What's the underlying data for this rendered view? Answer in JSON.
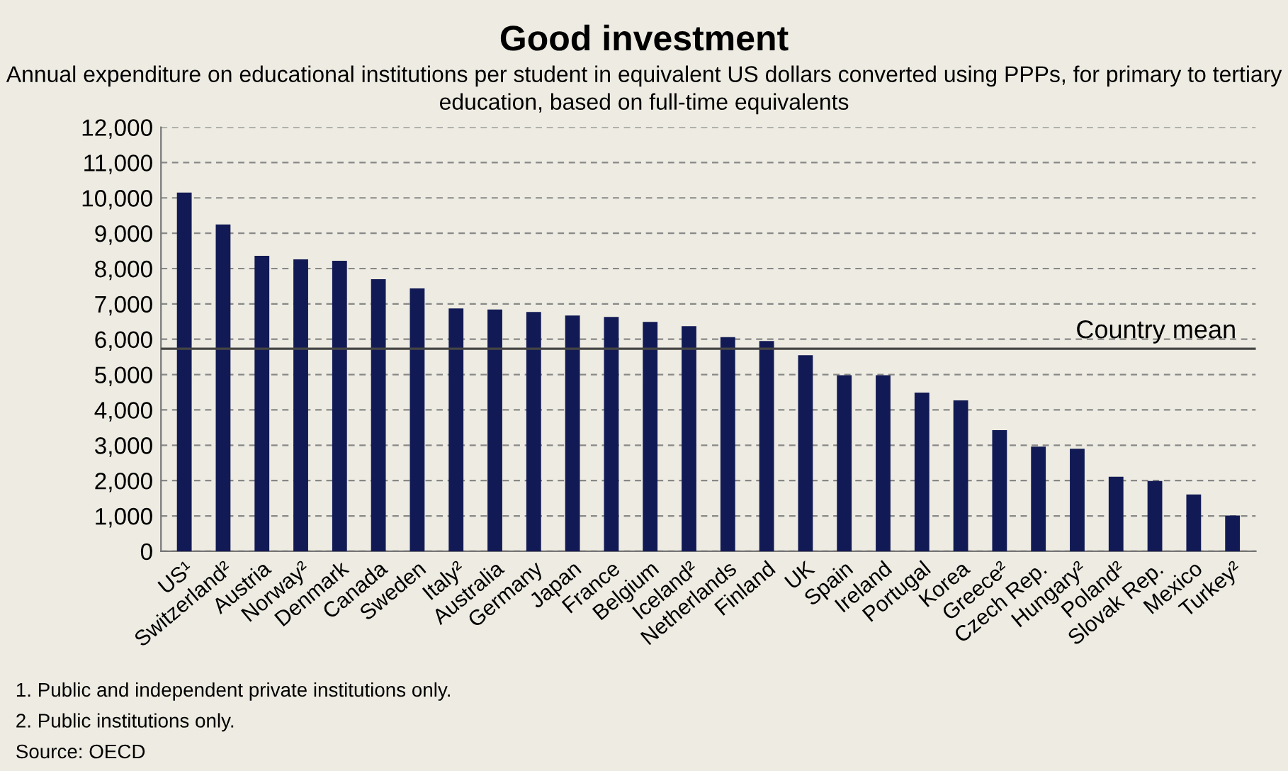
{
  "chart_data": {
    "type": "bar",
    "title": "Good investment",
    "subtitle": "Annual expenditure on educational institutions per student in equivalent US dollars converted using PPPs, for primary to tertiary education, based on full-time equivalents",
    "categories": [
      "US¹",
      "Switzerland²",
      "Austria",
      "Norway²",
      "Denmark",
      "Canada",
      "Sweden",
      "Italy²",
      "Australia",
      "Germany",
      "Japan",
      "France",
      "Belgium",
      "Iceland²",
      "Netherlands",
      "Finland",
      "UK",
      "Spain",
      "Ireland",
      "Portugal",
      "Korea",
      "Greece²",
      "Czech Rep.",
      "Hungary²",
      "Poland²",
      "Slovak Rep.",
      "Mexico",
      "Turkey²"
    ],
    "values": [
      10150,
      9250,
      8360,
      8260,
      8220,
      7700,
      7440,
      6870,
      6840,
      6770,
      6670,
      6630,
      6490,
      6370,
      6060,
      5950,
      5550,
      4980,
      4980,
      4490,
      4270,
      3430,
      2960,
      2900,
      2110,
      1990,
      1610,
      1010
    ],
    "color": "#121a55",
    "ylim": [
      0,
      12000
    ],
    "yticks": [
      {
        "value": 0,
        "label": "0"
      },
      {
        "value": 1000,
        "label": "1,000"
      },
      {
        "value": 2000,
        "label": "2,000"
      },
      {
        "value": 3000,
        "label": "3,000"
      },
      {
        "value": 4000,
        "label": "4,000"
      },
      {
        "value": 5000,
        "label": "5,000"
      },
      {
        "value": 6000,
        "label": "6,000"
      },
      {
        "value": 7000,
        "label": "7,000"
      },
      {
        "value": 8000,
        "label": "8,000"
      },
      {
        "value": 9000,
        "label": "9,000"
      },
      {
        "value": 10000,
        "label": "10,000"
      },
      {
        "value": 11000,
        "label": "11,000"
      },
      {
        "value": 12000,
        "label": "12,000"
      }
    ],
    "grid": "y",
    "ref_lines": [
      {
        "axis": "y",
        "value": 5730,
        "label": "Country mean",
        "color": "#444444",
        "line_style": "solid"
      }
    ],
    "annotations": [
      "1. Public and independent private institutions only.",
      "2. Public institutions only.",
      "Source: OECD"
    ]
  }
}
